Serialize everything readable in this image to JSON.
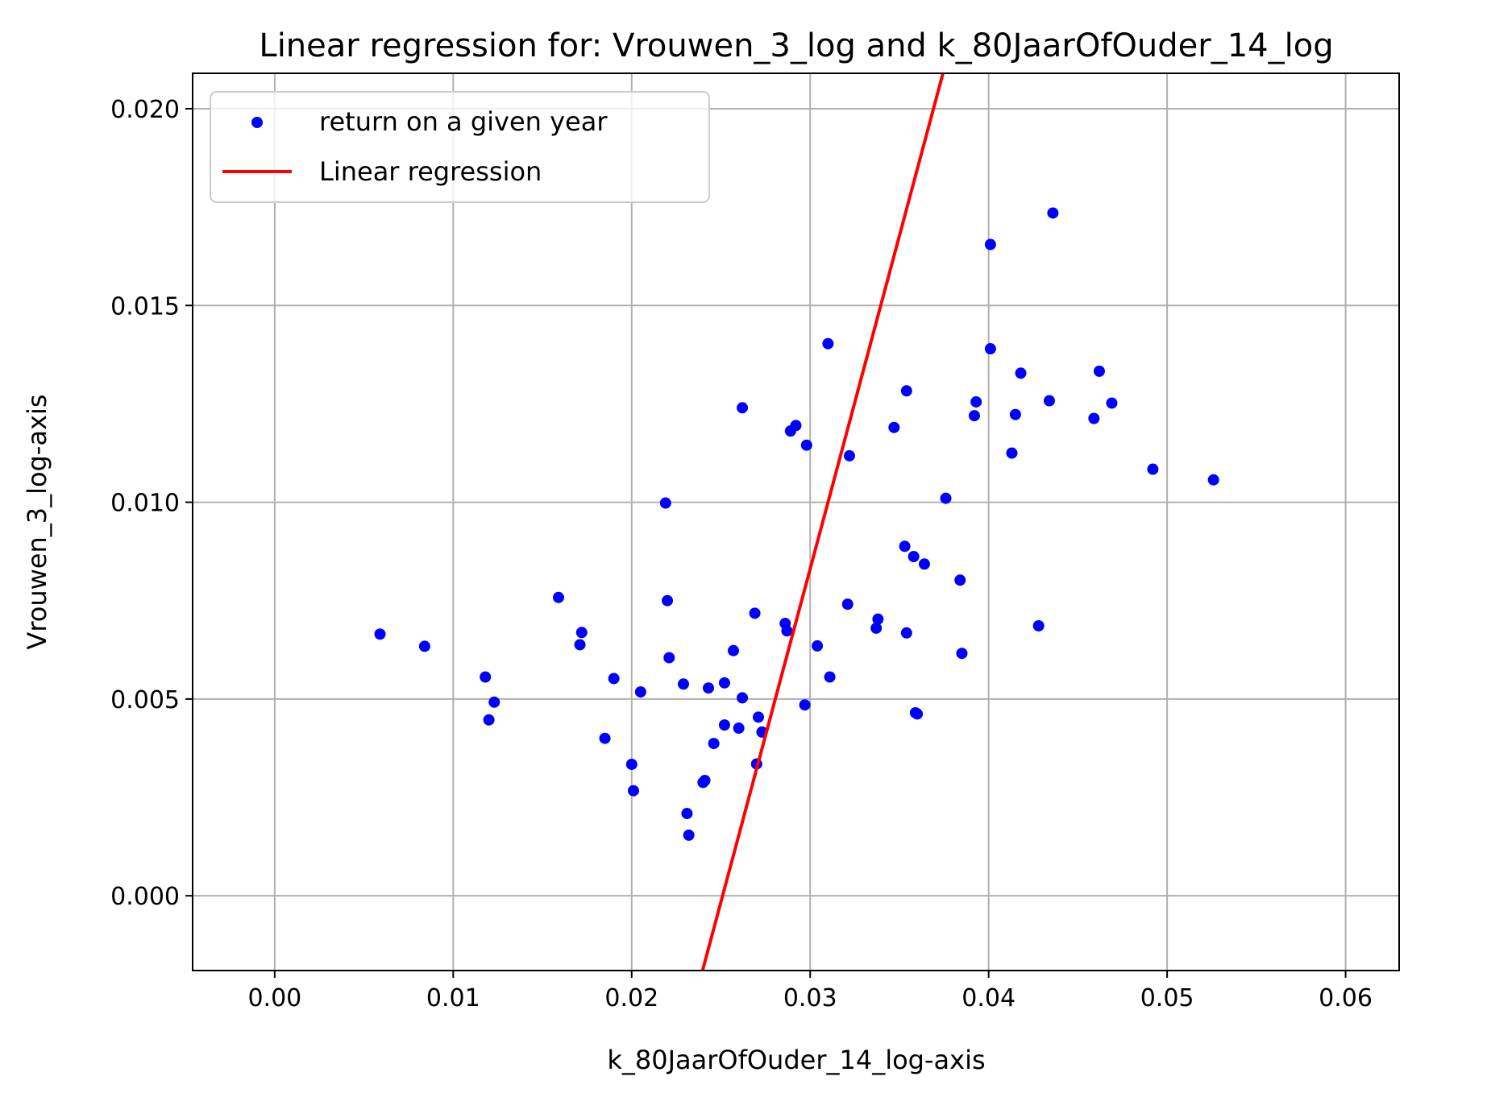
{
  "chart_data": {
    "type": "scatter",
    "title": "Linear regression for: Vrouwen_3_log and k_80JaarOfOuder_14_log",
    "xlabel": "k_80JaarOfOuder_14_log-axis",
    "ylabel": "Vrouwen_3_log-axis",
    "xlim": [
      -0.0046,
      0.063
    ],
    "ylim": [
      -0.0019,
      0.0209
    ],
    "xticks": [
      0.0,
      0.01,
      0.02,
      0.03,
      0.04,
      0.05,
      0.06
    ],
    "xtick_labels": [
      "0.00",
      "0.01",
      "0.02",
      "0.03",
      "0.04",
      "0.05",
      "0.06"
    ],
    "yticks": [
      0.0,
      0.005,
      0.01,
      0.015,
      0.02
    ],
    "ytick_labels": [
      "0.000",
      "0.005",
      "0.010",
      "0.015",
      "0.020"
    ],
    "grid": true,
    "legend_position": "top-left",
    "series": [
      {
        "name": "return on a given year",
        "kind": "scatter",
        "color": "#0000ff",
        "points": [
          [
            0.0059,
            0.00665
          ],
          [
            0.0084,
            0.00634
          ],
          [
            0.0118,
            0.00556
          ],
          [
            0.012,
            0.00447
          ],
          [
            0.0123,
            0.00492
          ],
          [
            0.0159,
            0.00758
          ],
          [
            0.0171,
            0.00638
          ],
          [
            0.0172,
            0.00669
          ],
          [
            0.0185,
            0.004
          ],
          [
            0.019,
            0.00552
          ],
          [
            0.02,
            0.00334
          ],
          [
            0.0201,
            0.00267
          ],
          [
            0.0205,
            0.00518
          ],
          [
            0.0219,
            0.00998
          ],
          [
            0.022,
            0.0075
          ],
          [
            0.0221,
            0.00605
          ],
          [
            0.0229,
            0.00538
          ],
          [
            0.0231,
            0.00209
          ],
          [
            0.0232,
            0.00154
          ],
          [
            0.024,
            0.00288
          ],
          [
            0.0241,
            0.00293
          ],
          [
            0.0243,
            0.00528
          ],
          [
            0.0246,
            0.00387
          ],
          [
            0.0252,
            0.00434
          ],
          [
            0.0252,
            0.00541
          ],
          [
            0.0257,
            0.00623
          ],
          [
            0.026,
            0.00426
          ],
          [
            0.0262,
            0.0124
          ],
          [
            0.0262,
            0.00503
          ],
          [
            0.0269,
            0.00718
          ],
          [
            0.027,
            0.00335
          ],
          [
            0.0271,
            0.00454
          ],
          [
            0.0273,
            0.00416
          ],
          [
            0.0286,
            0.00692
          ],
          [
            0.0287,
            0.00673
          ],
          [
            0.0289,
            0.01181
          ],
          [
            0.0292,
            0.01195
          ],
          [
            0.0297,
            0.00485
          ],
          [
            0.0298,
            0.01145
          ],
          [
            0.0304,
            0.00635
          ],
          [
            0.031,
            0.01403
          ],
          [
            0.0311,
            0.00556
          ],
          [
            0.0321,
            0.00741
          ],
          [
            0.0322,
            0.01118
          ],
          [
            0.0337,
            0.0068
          ],
          [
            0.0338,
            0.00703
          ],
          [
            0.0347,
            0.0119
          ],
          [
            0.0353,
            0.00888
          ],
          [
            0.0354,
            0.01283
          ],
          [
            0.0354,
            0.00668
          ],
          [
            0.0358,
            0.00862
          ],
          [
            0.0359,
            0.00465
          ],
          [
            0.036,
            0.00462
          ],
          [
            0.0364,
            0.00843
          ],
          [
            0.0376,
            0.0101
          ],
          [
            0.0384,
            0.00802
          ],
          [
            0.0385,
            0.00616
          ],
          [
            0.0392,
            0.0122
          ],
          [
            0.0393,
            0.01255
          ],
          [
            0.0401,
            0.01655
          ],
          [
            0.0401,
            0.0139
          ],
          [
            0.0413,
            0.01125
          ],
          [
            0.0415,
            0.01223
          ],
          [
            0.0418,
            0.01328
          ],
          [
            0.0428,
            0.00686
          ],
          [
            0.0434,
            0.01258
          ],
          [
            0.0436,
            0.01735
          ],
          [
            0.0459,
            0.01213
          ],
          [
            0.0462,
            0.01333
          ],
          [
            0.0469,
            0.01252
          ],
          [
            0.0492,
            0.01084
          ],
          [
            0.0526,
            0.01057
          ]
        ]
      },
      {
        "name": "Linear regression",
        "kind": "line",
        "color": "#ff0000",
        "points": [
          [
            0.02397,
            -0.0019
          ],
          [
            0.03744,
            0.0209
          ]
        ]
      }
    ]
  }
}
